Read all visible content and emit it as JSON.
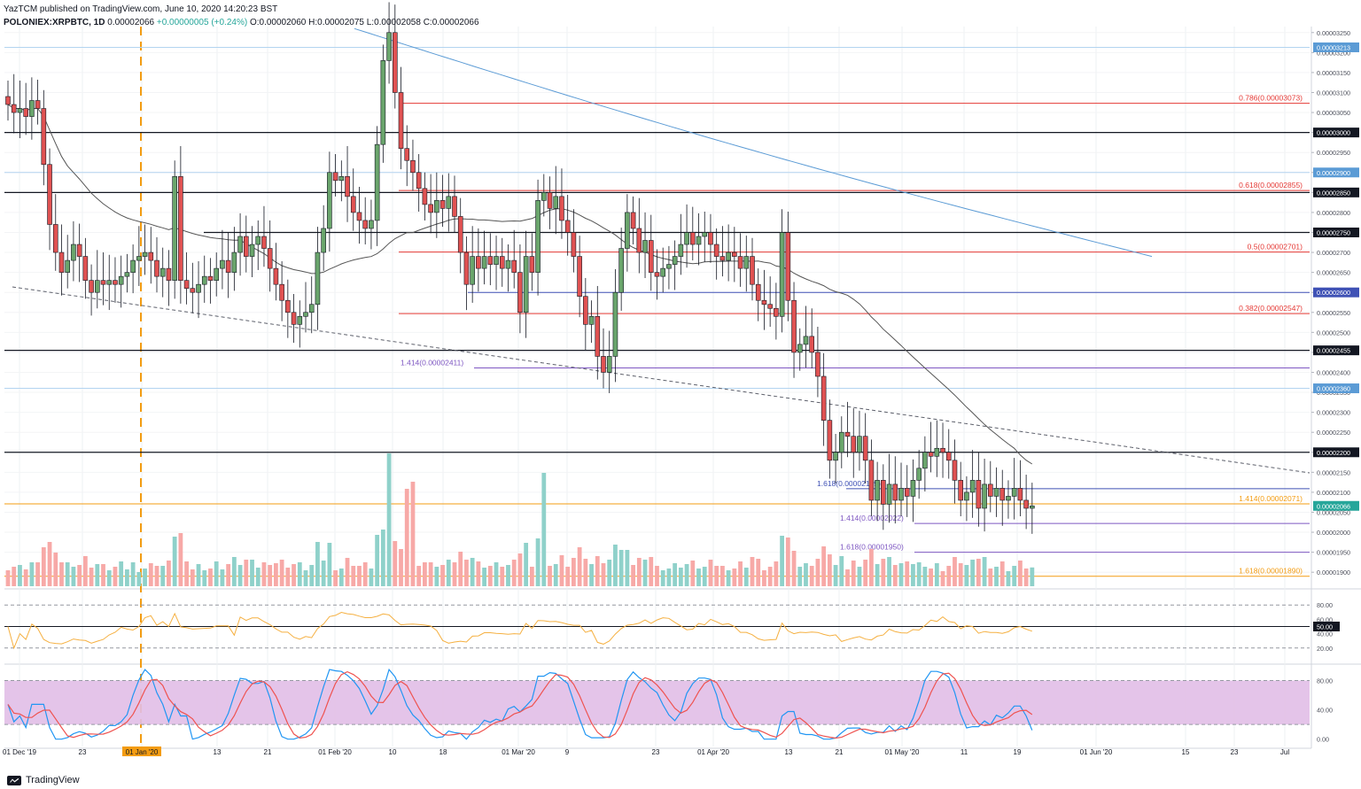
{
  "header": {
    "line1": "YazTCM published on TradingView.com, June 10, 2020 14:20:23 BST",
    "symbol": "POLONIEX:XRPBTC, 1D",
    "last": "0.00002066",
    "change": "+0.00000005 (+0.24%)",
    "ohlc": "O:0.00002060 H:0.00002075 L:0.00002058 C:0.00002066"
  },
  "footer": {
    "brand": "TradingView"
  },
  "colors": {
    "bull": "#26a69a",
    "bear": "#ef5350",
    "fib_red": "#e53935",
    "fib_blue": "#3f51b5",
    "fib_purple": "#7e57c2",
    "fib_orange": "#f39c12",
    "ma100": "#555555",
    "ma200": "#5b9bd5",
    "rsi": "#f5b041",
    "stoch_k": "#2196f3",
    "stoch_d": "#ef5350",
    "stoch_band": "#e1bee7"
  },
  "chart_data": [
    {
      "type": "candlestick",
      "title": "POLONIEX:XRPBTC, 1D",
      "ylim": [
        1.865e-05,
        3.265e-05
      ],
      "y_ticks": [
        "0.00003250",
        "0.00003200",
        "0.00003150",
        "0.00003100",
        "0.00003050",
        "0.00003000",
        "0.00002950",
        "0.00002900",
        "0.00002850",
        "0.00002800",
        "0.00002750",
        "0.00002700",
        "0.00002650",
        "0.00002600",
        "0.00002550",
        "0.00002500",
        "0.00002450",
        "0.00002400",
        "0.00002350",
        "0.00002300",
        "0.00002250",
        "0.00002200",
        "0.00002150",
        "0.00002100",
        "0.00002050",
        "0.00002000",
        "0.00001950",
        "0.00001900"
      ],
      "x_ticks": [
        "01 Dec '19",
        "23",
        "01 Jan '20",
        "13",
        "21",
        "01 Feb '20",
        "10",
        "18",
        "01 Mar '20",
        "9",
        "23",
        "01 Apr '20",
        "13",
        "21",
        "01 May '20",
        "11",
        "19",
        "01 Jun '20",
        "15",
        "23",
        "Jul"
      ],
      "horizontal_levels": [
        {
          "value": "0.00003213",
          "kind": "light-blue"
        },
        {
          "value": "0.00003000",
          "kind": "black"
        },
        {
          "value": "0.00002900",
          "kind": "light-blue"
        },
        {
          "value": "0.00002850",
          "kind": "black"
        },
        {
          "value": "0.00002750",
          "kind": "black"
        },
        {
          "value": "0.00002600",
          "kind": "blue"
        },
        {
          "value": "0.00002500",
          "kind": "none"
        },
        {
          "value": "0.00002455",
          "kind": "black"
        },
        {
          "value": "0.00002360",
          "kind": "light-blue"
        },
        {
          "value": "0.00002200",
          "kind": "black"
        },
        {
          "value": "0.00002066",
          "kind": "last"
        }
      ],
      "fib_labels": [
        {
          "label": "0.786(0.00003073)",
          "value": 3.073e-05,
          "color": "red",
          "start": "10"
        },
        {
          "label": "0.618(0.00002855)",
          "value": 2.855e-05,
          "color": "red",
          "start": "10"
        },
        {
          "label": "0.5(0.00002701)",
          "value": 2.701e-05,
          "color": "red",
          "start": "10"
        },
        {
          "label": "0.382(0.00002547)",
          "value": 2.547e-05,
          "color": "red",
          "start": "10"
        },
        {
          "label": "1.414(0.00002411)",
          "value": 2.411e-05,
          "color": "purple",
          "start": "18"
        },
        {
          "label": "1.618(0.00002109)",
          "value": 2.109e-05,
          "color": "blue",
          "start": "01 May '20"
        },
        {
          "label": "1.414(0.00002071)",
          "value": 2.071e-05,
          "color": "orange",
          "start": "01 Dec '19"
        },
        {
          "label": "1.414(0.00002022)",
          "value": 2.022e-05,
          "color": "purple",
          "start": "11"
        },
        {
          "label": "1.618(0.00001950)",
          "value": 1.95e-05,
          "color": "purple",
          "start": "11"
        },
        {
          "label": "1.618(0.00001890)",
          "value": 1.89e-05,
          "color": "orange",
          "start": "01 Dec '19"
        }
      ],
      "candles": [
        [
          3.09e-05,
          3.07e-05
        ],
        [
          3.07e-05,
          3.05e-05
        ],
        [
          3.05e-05,
          3.06e-05
        ],
        [
          3.06e-05,
          3.04e-05
        ],
        [
          3.04e-05,
          3.08e-05
        ],
        [
          3.08e-05,
          3.06e-05
        ],
        [
          3.06e-05,
          2.92e-05
        ],
        [
          2.92e-05,
          2.77e-05
        ],
        [
          2.77e-05,
          2.7e-05
        ],
        [
          2.7e-05,
          2.65e-05
        ],
        [
          2.65e-05,
          2.68e-05
        ],
        [
          2.68e-05,
          2.72e-05
        ],
        [
          2.72e-05,
          2.69e-05
        ],
        [
          2.69e-05,
          2.63e-05
        ],
        [
          2.63e-05,
          2.6e-05
        ],
        [
          2.6e-05,
          2.63e-05
        ],
        [
          2.63e-05,
          2.62e-05
        ],
        [
          2.62e-05,
          2.63e-05
        ],
        [
          2.63e-05,
          2.62e-05
        ],
        [
          2.62e-05,
          2.64e-05
        ],
        [
          2.64e-05,
          2.65e-05
        ],
        [
          2.65e-05,
          2.68e-05
        ],
        [
          2.68e-05,
          2.69e-05
        ],
        [
          2.69e-05,
          2.7e-05
        ],
        [
          2.7e-05,
          2.68e-05
        ],
        [
          2.68e-05,
          2.64e-05
        ],
        [
          2.64e-05,
          2.66e-05
        ],
        [
          2.66e-05,
          2.63e-05
        ],
        [
          2.63e-05,
          2.89e-05
        ],
        [
          2.89e-05,
          2.63e-05
        ],
        [
          2.63e-05,
          2.61e-05
        ],
        [
          2.61e-05,
          2.6e-05
        ],
        [
          2.6e-05,
          2.62e-05
        ],
        [
          2.62e-05,
          2.64e-05
        ],
        [
          2.64e-05,
          2.63e-05
        ],
        [
          2.63e-05,
          2.66e-05
        ],
        [
          2.66e-05,
          2.68e-05
        ],
        [
          2.68e-05,
          2.65e-05
        ],
        [
          2.65e-05,
          2.7e-05
        ],
        [
          2.7e-05,
          2.74e-05
        ],
        [
          2.74e-05,
          2.69e-05
        ],
        [
          2.69e-05,
          2.72e-05
        ],
        [
          2.72e-05,
          2.74e-05
        ],
        [
          2.74e-05,
          2.71e-05
        ],
        [
          2.71e-05,
          2.66e-05
        ],
        [
          2.66e-05,
          2.62e-05
        ],
        [
          2.62e-05,
          2.58e-05
        ],
        [
          2.58e-05,
          2.55e-05
        ],
        [
          2.55e-05,
          2.52e-05
        ],
        [
          2.52e-05,
          2.54e-05
        ],
        [
          2.54e-05,
          2.55e-05
        ],
        [
          2.55e-05,
          2.57e-05
        ],
        [
          2.57e-05,
          2.7e-05
        ],
        [
          2.7e-05,
          2.76e-05
        ],
        [
          2.76e-05,
          2.9e-05
        ],
        [
          2.9e-05,
          2.88e-05
        ],
        [
          2.88e-05,
          2.89e-05
        ],
        [
          2.89e-05,
          2.84e-05
        ],
        [
          2.84e-05,
          2.8e-05
        ],
        [
          2.8e-05,
          2.78e-05
        ],
        [
          2.78e-05,
          2.76e-05
        ],
        [
          2.76e-05,
          2.78e-05
        ],
        [
          2.78e-05,
          2.97e-05
        ],
        [
          2.97e-05,
          3.18e-05
        ],
        [
          3.18e-05,
          3.25e-05
        ],
        [
          3.25e-05,
          3.1e-05
        ],
        [
          3.1e-05,
          2.96e-05
        ],
        [
          2.96e-05,
          2.93e-05
        ],
        [
          2.93e-05,
          2.9e-05
        ],
        [
          2.9e-05,
          2.86e-05
        ],
        [
          2.86e-05,
          2.82e-05
        ],
        [
          2.82e-05,
          2.8e-05
        ],
        [
          2.8e-05,
          2.83e-05
        ],
        [
          2.83e-05,
          2.81e-05
        ],
        [
          2.81e-05,
          2.84e-05
        ],
        [
          2.84e-05,
          2.79e-05
        ],
        [
          2.79e-05,
          2.7e-05
        ],
        [
          2.7e-05,
          2.62e-05
        ],
        [
          2.62e-05,
          2.69e-05
        ],
        [
          2.69e-05,
          2.66e-05
        ],
        [
          2.66e-05,
          2.69e-05
        ],
        [
          2.69e-05,
          2.67e-05
        ],
        [
          2.67e-05,
          2.69e-05
        ],
        [
          2.69e-05,
          2.66e-05
        ],
        [
          2.66e-05,
          2.68e-05
        ],
        [
          2.68e-05,
          2.65e-05
        ],
        [
          2.65e-05,
          2.55e-05
        ],
        [
          2.55e-05,
          2.69e-05
        ],
        [
          2.69e-05,
          2.65e-05
        ],
        [
          2.65e-05,
          2.83e-05
        ],
        [
          2.83e-05,
          2.85e-05
        ],
        [
          2.85e-05,
          2.81e-05
        ],
        [
          2.81e-05,
          2.84e-05
        ],
        [
          2.84e-05,
          2.78e-05
        ],
        [
          2.78e-05,
          2.75e-05
        ],
        [
          2.75e-05,
          2.69e-05
        ],
        [
          2.69e-05,
          2.59e-05
        ],
        [
          2.59e-05,
          2.52e-05
        ],
        [
          2.52e-05,
          2.54e-05
        ],
        [
          2.54e-05,
          2.44e-05
        ],
        [
          2.44e-05,
          2.4e-05
        ],
        [
          2.4e-05,
          2.44e-05
        ],
        [
          2.44e-05,
          2.6e-05
        ],
        [
          2.6e-05,
          2.71e-05
        ],
        [
          2.71e-05,
          2.8e-05
        ],
        [
          2.8e-05,
          2.76e-05
        ],
        [
          2.76e-05,
          2.7e-05
        ],
        [
          2.7e-05,
          2.73e-05
        ],
        [
          2.73e-05,
          2.65e-05
        ],
        [
          2.65e-05,
          2.64e-05
        ],
        [
          2.64e-05,
          2.66e-05
        ],
        [
          2.66e-05,
          2.67e-05
        ],
        [
          2.67e-05,
          2.69e-05
        ],
        [
          2.69e-05,
          2.72e-05
        ],
        [
          2.72e-05,
          2.75e-05
        ],
        [
          2.75e-05,
          2.72e-05
        ],
        [
          2.72e-05,
          2.74e-05
        ],
        [
          2.74e-05,
          2.75e-05
        ],
        [
          2.75e-05,
          2.72e-05
        ],
        [
          2.72e-05,
          2.69e-05
        ],
        [
          2.69e-05,
          2.68e-05
        ],
        [
          2.68e-05,
          2.7e-05
        ],
        [
          2.7e-05,
          2.69e-05
        ],
        [
          2.69e-05,
          2.66e-05
        ],
        [
          2.66e-05,
          2.69e-05
        ],
        [
          2.69e-05,
          2.62e-05
        ],
        [
          2.62e-05,
          2.58e-05
        ],
        [
          2.58e-05,
          2.57e-05
        ],
        [
          2.57e-05,
          2.56e-05
        ],
        [
          2.56e-05,
          2.54e-05
        ],
        [
          2.54e-05,
          2.75e-05
        ],
        [
          2.75e-05,
          2.58e-05
        ],
        [
          2.58e-05,
          2.45e-05
        ],
        [
          2.45e-05,
          2.47e-05
        ],
        [
          2.47e-05,
          2.49e-05
        ],
        [
          2.49e-05,
          2.45e-05
        ],
        [
          2.45e-05,
          2.39e-05
        ],
        [
          2.39e-05,
          2.28e-05
        ],
        [
          2.28e-05,
          2.18e-05
        ],
        [
          2.18e-05,
          2.2e-05
        ],
        [
          2.2e-05,
          2.25e-05
        ],
        [
          2.25e-05,
          2.24e-05
        ],
        [
          2.24e-05,
          2.2e-05
        ],
        [
          2.2e-05,
          2.24e-05
        ],
        [
          2.24e-05,
          2.18e-05
        ],
        [
          2.18e-05,
          2.08e-05
        ],
        [
          2.08e-05,
          2.13e-05
        ],
        [
          2.13e-05,
          2.07e-05
        ],
        [
          2.07e-05,
          2.12e-05
        ],
        [
          2.12e-05,
          2.08e-05
        ],
        [
          2.08e-05,
          2.11e-05
        ],
        [
          2.11e-05,
          2.09e-05
        ],
        [
          2.09e-05,
          2.13e-05
        ],
        [
          2.13e-05,
          2.16e-05
        ],
        [
          2.16e-05,
          2.2e-05
        ],
        [
          2.2e-05,
          2.19e-05
        ],
        [
          2.19e-05,
          2.21e-05
        ],
        [
          2.21e-05,
          2.2e-05
        ],
        [
          2.2e-05,
          2.18e-05
        ],
        [
          2.18e-05,
          2.13e-05
        ],
        [
          2.13e-05,
          2.08e-05
        ],
        [
          2.08e-05,
          2.1e-05
        ],
        [
          2.1e-05,
          2.13e-05
        ],
        [
          2.13e-05,
          2.06e-05
        ],
        [
          2.06e-05,
          2.12e-05
        ],
        [
          2.12e-05,
          2.09e-05
        ],
        [
          2.09e-05,
          2.11e-05
        ],
        [
          2.11e-05,
          2.08e-05
        ],
        [
          2.08e-05,
          2.09e-05
        ],
        [
          2.09e-05,
          2.11e-05
        ],
        [
          2.11e-05,
          2.08e-05
        ],
        [
          2.08e-05,
          2.06e-05
        ],
        [
          2.06e-05,
          2.066e-05
        ]
      ],
      "last_price": "0.00002066"
    },
    {
      "type": "line",
      "title": "RSI",
      "ylim": [
        0,
        100
      ],
      "y_ticks": [
        "80.00",
        "60.00",
        "50.00",
        "40.00",
        "20.00"
      ],
      "levels": [
        80,
        50,
        20
      ]
    },
    {
      "type": "line",
      "title": "Stochastic RSI",
      "ylim": [
        -10,
        100
      ],
      "y_ticks": [
        "80.00",
        "40.00",
        "0.00"
      ],
      "band": [
        20,
        80
      ]
    }
  ]
}
